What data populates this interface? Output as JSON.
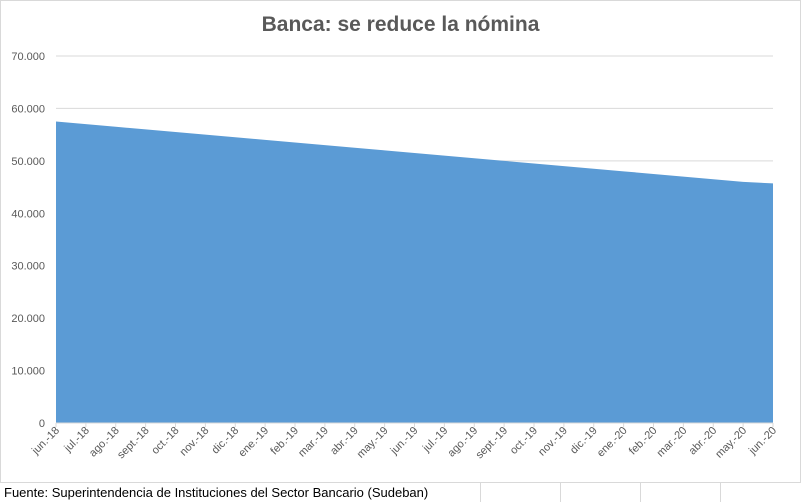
{
  "footer": {
    "source": "Fuente: Superintendencia de Instituciones del Sector Bancario (Sudeban)"
  },
  "colors": {
    "area": "#5b9bd5",
    "grid": "#d9d9d9",
    "axis_text": "#595959",
    "title": "#595959"
  },
  "chart_data": {
    "type": "area",
    "title": "Banca: se reduce la nómina",
    "xlabel": "",
    "ylabel": "",
    "ylim": [
      0,
      70000
    ],
    "yticks": [
      0,
      10000,
      20000,
      30000,
      40000,
      50000,
      60000,
      70000
    ],
    "ytick_labels": [
      "0",
      "10.000",
      "20.000",
      "30.000",
      "40.000",
      "50.000",
      "60.000",
      "70.000"
    ],
    "grid": true,
    "legend": "none",
    "categories": [
      "jun.-18",
      "jul.-18",
      "ago.-18",
      "sept.-18",
      "oct.-18",
      "nov.-18",
      "dic.-18",
      "ene.-19",
      "feb.-19",
      "mar.-19",
      "abr.-19",
      "may.-19",
      "jun.-19",
      "jul.-19",
      "ago.-19",
      "sept.-19",
      "oct.-19",
      "nov.-19",
      "dic.-19",
      "ene.-20",
      "feb.-20",
      "mar.-20",
      "abr.-20",
      "may.-20",
      "jun.-20"
    ],
    "values": [
      57500,
      57000,
      56500,
      56000,
      55500,
      55000,
      54500,
      54000,
      53500,
      53000,
      52500,
      52000,
      51500,
      51000,
      50500,
      50000,
      49500,
      49000,
      48500,
      48000,
      47500,
      47000,
      46500,
      46000,
      45700
    ]
  }
}
